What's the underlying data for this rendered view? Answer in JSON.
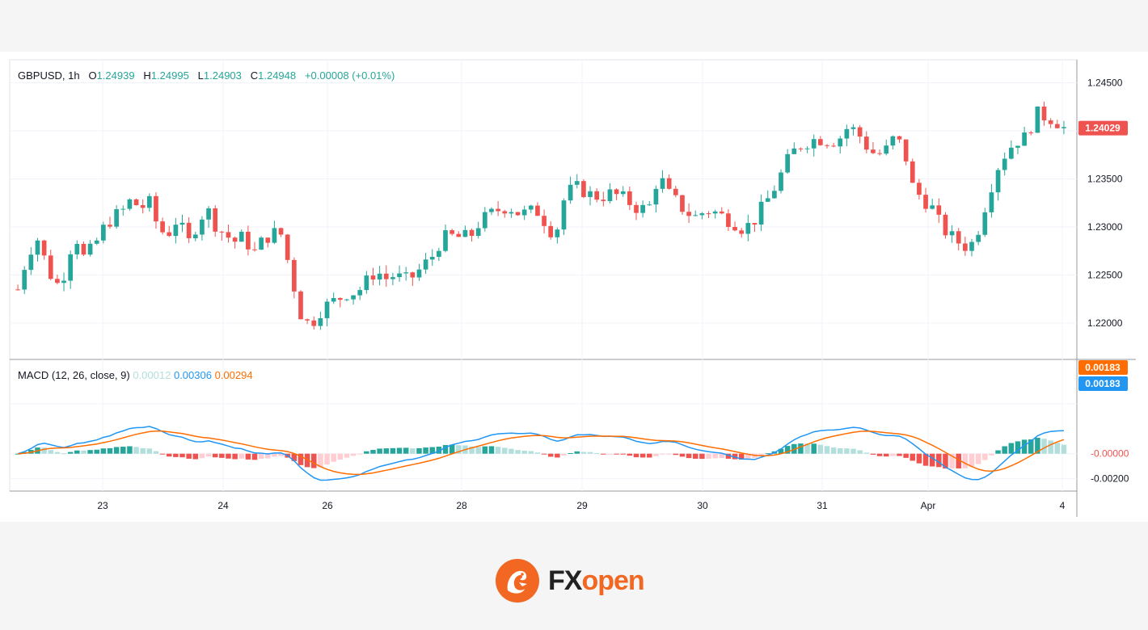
{
  "chart_data": {
    "type": "candlestick",
    "symbol": "GBPUSD",
    "timeframe": "1h",
    "ohlc_legend": {
      "open": "1.24939",
      "high": "1.24995",
      "low": "1.24903",
      "close": "1.24948",
      "change": "+0.00008",
      "change_pct": "(+0.01%)"
    },
    "last_price_tag": "1.24029",
    "price_axis": {
      "ticks": [
        "1.24500",
        "1.23500",
        "1.23000",
        "1.22500",
        "1.22000"
      ],
      "ylim": [
        1.2163,
        1.2474
      ]
    },
    "time_axis": {
      "labels": [
        "23",
        "24",
        "26",
        "28",
        "29",
        "30",
        "31",
        "Apr",
        "4"
      ]
    },
    "price_path": [
      1.2235,
      1.227,
      1.229,
      1.2262,
      1.2238,
      1.2253,
      1.2295,
      1.2268,
      1.2278,
      1.2297,
      1.231,
      1.2315,
      1.2328,
      1.232,
      1.2325,
      1.2296,
      1.2294,
      1.231,
      1.2281,
      1.2303,
      1.232,
      1.2302,
      1.2292,
      1.2285,
      1.229,
      1.2272,
      1.2286,
      1.2294,
      1.2292,
      1.225,
      1.221,
      1.2197,
      1.2212,
      1.222,
      1.2225,
      1.2232,
      1.2232,
      1.2243,
      1.2255,
      1.2246,
      1.225,
      1.2244,
      1.2249,
      1.2259,
      1.227,
      1.2288,
      1.229,
      1.2289,
      1.229,
      1.2305,
      1.2312,
      1.2318,
      1.2322,
      1.2315,
      1.2314,
      1.2318,
      1.2305,
      1.229,
      1.233,
      1.2342,
      1.2338,
      1.2332,
      1.2332,
      1.2335,
      1.2331,
      1.2325,
      1.2318,
      1.2321,
      1.2355,
      1.2335,
      1.2325,
      1.2315,
      1.231,
      1.2318,
      1.2315,
      1.231,
      1.2305,
      1.2298,
      1.2305,
      1.232,
      1.2335,
      1.2355,
      1.2375,
      1.2385,
      1.239,
      1.2392,
      1.239,
      1.239,
      1.2403,
      1.24,
      1.2385,
      1.2375,
      1.2378,
      1.2393,
      1.2382,
      1.234,
      1.233,
      1.232,
      1.23,
      1.229,
      1.2283,
      1.2278,
      1.23,
      1.2335,
      1.2363,
      1.238,
      1.239,
      1.2393,
      1.2418,
      1.2415,
      1.2412,
      1.2403
    ],
    "macd": {
      "title": "MACD (12, 26, close, 9)",
      "histogram_value": "0.00012",
      "macd_value": "0.00306",
      "signal_value": "0.00294",
      "axis_ticks": [
        "-0.00000",
        "-0.00200"
      ],
      "tags": {
        "signal": "0.00183",
        "macd": "0.00183",
        "zero": "-0.00000"
      },
      "ylim": [
        -0.003,
        0.0075
      ]
    }
  },
  "colors": {
    "up": "#26a69a",
    "down": "#ef5350",
    "up_hist_light": "#b2dfdb",
    "down_hist_light": "#ffcdd2",
    "macd_line": "#2196f3",
    "signal_line": "#ff6d00",
    "price_tag": "#ef5350",
    "signal_tag": "#ff6d00",
    "macd_tag": "#2196f3",
    "brand": "#f26722"
  },
  "brand": {
    "prefix": "FX",
    "suffix": "open",
    "icon": "dragon-icon"
  }
}
